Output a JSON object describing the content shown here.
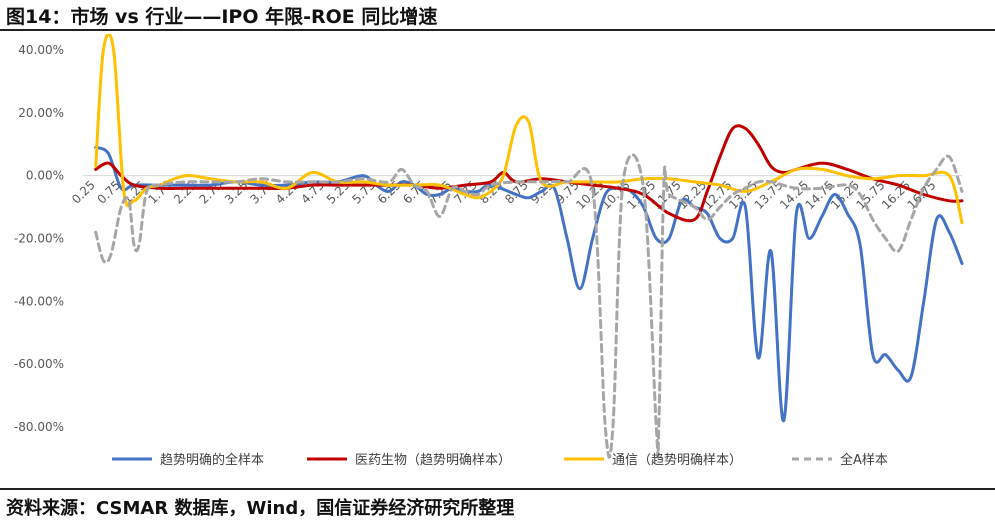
{
  "title": "图14：市场 vs 行业——IPO 年限-ROE 同比增速",
  "source": "资料来源：CSMAR 数据库，Wind，国信证券经济研究所整理",
  "chart_data": {
    "type": "line",
    "ylim": [
      -0.8,
      0.4
    ],
    "xlim": [
      0,
      17.25
    ],
    "yticks": [
      0.4,
      0.2,
      0.0,
      -0.2,
      -0.4,
      -0.6,
      -0.8
    ],
    "ytick_labels": [
      "40.00%",
      "20.00%",
      "0.00%",
      "-20.00%",
      "-40.00%",
      "-60.00%",
      "-80.00%"
    ],
    "xticks": [
      0.25,
      0.75,
      1.25,
      1.75,
      2.25,
      2.75,
      3.25,
      3.75,
      4.25,
      4.75,
      5.25,
      5.75,
      6.25,
      6.75,
      7.25,
      7.75,
      8.25,
      8.75,
      9.25,
      9.75,
      10.25,
      10.75,
      11.25,
      11.75,
      12.25,
      12.75,
      13.25,
      13.75,
      14.25,
      14.75,
      15.25,
      15.75,
      16.25,
      16.75
    ],
    "xtick_labels": [
      "0.25",
      "0.75",
      "1.25",
      "1.75",
      "2.25",
      "2.75",
      "3.25",
      "3.75",
      "4.25",
      "4.75",
      "5.25",
      "5.75",
      "6.25",
      "6.75",
      "7.25",
      "7.75",
      "8.25",
      "8.75",
      "9.25",
      "9.75",
      "10.25",
      "10.75",
      "11.25",
      "11.75",
      "12.25",
      "12.75",
      "13.25",
      "13.75",
      "14.25",
      "14.75",
      "15.25",
      "15.75",
      "16.25",
      "16.75"
    ],
    "grid": false,
    "legend_position": "bottom",
    "series": [
      {
        "name": "趋势明确的全样本",
        "color": "#4472C4",
        "dash": false,
        "points": [
          [
            0.25,
            0.09
          ],
          [
            0.5,
            0.07
          ],
          [
            0.75,
            -0.04
          ],
          [
            1.0,
            -0.03
          ],
          [
            1.5,
            -0.03
          ],
          [
            2.0,
            -0.03
          ],
          [
            2.5,
            -0.03
          ],
          [
            3.0,
            -0.02
          ],
          [
            3.5,
            -0.03
          ],
          [
            4.0,
            -0.03
          ],
          [
            4.5,
            -0.02
          ],
          [
            5.0,
            -0.02
          ],
          [
            5.5,
            0.0
          ],
          [
            5.75,
            -0.03
          ],
          [
            6.0,
            -0.05
          ],
          [
            6.25,
            -0.02
          ],
          [
            6.5,
            -0.03
          ],
          [
            6.75,
            -0.06
          ],
          [
            7.0,
            -0.06
          ],
          [
            7.25,
            -0.04
          ],
          [
            7.5,
            -0.05
          ],
          [
            7.75,
            -0.05
          ],
          [
            8.0,
            -0.03
          ],
          [
            8.5,
            -0.06
          ],
          [
            8.75,
            -0.07
          ],
          [
            9.0,
            -0.05
          ],
          [
            9.25,
            -0.04
          ],
          [
            9.5,
            -0.2
          ],
          [
            9.75,
            -0.36
          ],
          [
            10.0,
            -0.2
          ],
          [
            10.25,
            -0.06
          ],
          [
            10.5,
            -0.04
          ],
          [
            10.75,
            -0.05
          ],
          [
            11.0,
            -0.1
          ],
          [
            11.25,
            -0.2
          ],
          [
            11.5,
            -0.2
          ],
          [
            11.75,
            -0.08
          ],
          [
            12.0,
            -0.1
          ],
          [
            12.25,
            -0.12
          ],
          [
            12.5,
            -0.2
          ],
          [
            12.75,
            -0.2
          ],
          [
            13.0,
            -0.1
          ],
          [
            13.25,
            -0.58
          ],
          [
            13.5,
            -0.24
          ],
          [
            13.75,
            -0.78
          ],
          [
            14.0,
            -0.12
          ],
          [
            14.25,
            -0.2
          ],
          [
            14.5,
            -0.13
          ],
          [
            14.75,
            -0.06
          ],
          [
            15.0,
            -0.12
          ],
          [
            15.25,
            -0.22
          ],
          [
            15.5,
            -0.57
          ],
          [
            15.75,
            -0.57
          ],
          [
            16.0,
            -0.62
          ],
          [
            16.25,
            -0.64
          ],
          [
            16.5,
            -0.4
          ],
          [
            16.75,
            -0.14
          ],
          [
            17.0,
            -0.18
          ],
          [
            17.25,
            -0.28
          ]
        ]
      },
      {
        "name": "医药生物（趋势明确样本）",
        "color": "#C00000",
        "dash": false,
        "points": [
          [
            0.25,
            0.02
          ],
          [
            0.5,
            0.04
          ],
          [
            0.75,
            0.0
          ],
          [
            1.0,
            -0.03
          ],
          [
            1.5,
            -0.04
          ],
          [
            2.0,
            -0.04
          ],
          [
            2.5,
            -0.04
          ],
          [
            3.0,
            -0.04
          ],
          [
            3.5,
            -0.04
          ],
          [
            4.0,
            -0.04
          ],
          [
            4.5,
            -0.03
          ],
          [
            5.0,
            -0.03
          ],
          [
            5.5,
            -0.03
          ],
          [
            6.0,
            -0.03
          ],
          [
            6.5,
            -0.03
          ],
          [
            7.0,
            -0.04
          ],
          [
            7.5,
            -0.03
          ],
          [
            8.0,
            -0.02
          ],
          [
            8.25,
            0.01
          ],
          [
            8.5,
            -0.02
          ],
          [
            9.0,
            -0.01
          ],
          [
            9.5,
            -0.02
          ],
          [
            10.0,
            -0.03
          ],
          [
            10.5,
            -0.04
          ],
          [
            11.0,
            -0.06
          ],
          [
            11.5,
            -0.12
          ],
          [
            12.0,
            -0.14
          ],
          [
            12.25,
            -0.05
          ],
          [
            12.5,
            0.06
          ],
          [
            12.75,
            0.15
          ],
          [
            13.0,
            0.15
          ],
          [
            13.25,
            0.1
          ],
          [
            13.5,
            0.03
          ],
          [
            13.75,
            0.01
          ],
          [
            14.0,
            0.02
          ],
          [
            14.5,
            0.04
          ],
          [
            15.0,
            0.02
          ],
          [
            15.5,
            -0.01
          ],
          [
            16.0,
            -0.03
          ],
          [
            16.5,
            -0.06
          ],
          [
            17.0,
            -0.08
          ],
          [
            17.25,
            -0.08
          ]
        ]
      },
      {
        "name": "通信（趋势明确样本）",
        "color": "#FFC000",
        "dash": false,
        "points": [
          [
            0.25,
            0.03
          ],
          [
            0.4,
            0.4
          ],
          [
            0.6,
            0.4
          ],
          [
            0.8,
            -0.05
          ],
          [
            1.0,
            -0.08
          ],
          [
            1.25,
            -0.04
          ],
          [
            1.5,
            -0.03
          ],
          [
            2.0,
            0.0
          ],
          [
            2.5,
            -0.01
          ],
          [
            3.0,
            -0.02
          ],
          [
            3.5,
            -0.02
          ],
          [
            4.0,
            -0.04
          ],
          [
            4.5,
            0.01
          ],
          [
            5.0,
            -0.02
          ],
          [
            5.5,
            -0.02
          ],
          [
            6.0,
            -0.03
          ],
          [
            6.5,
            -0.03
          ],
          [
            7.0,
            -0.03
          ],
          [
            7.5,
            -0.06
          ],
          [
            7.75,
            -0.07
          ],
          [
            8.0,
            -0.05
          ],
          [
            8.25,
            0.0
          ],
          [
            8.5,
            0.16
          ],
          [
            8.75,
            0.17
          ],
          [
            9.0,
            -0.02
          ],
          [
            9.5,
            -0.02
          ],
          [
            10.0,
            -0.02
          ],
          [
            10.5,
            -0.02
          ],
          [
            11.0,
            -0.01
          ],
          [
            11.5,
            -0.01
          ],
          [
            12.0,
            -0.02
          ],
          [
            12.5,
            -0.03
          ],
          [
            13.0,
            -0.05
          ],
          [
            13.5,
            -0.02
          ],
          [
            14.0,
            0.02
          ],
          [
            14.5,
            0.02
          ],
          [
            15.0,
            0.0
          ],
          [
            15.5,
            -0.01
          ],
          [
            16.0,
            0.0
          ],
          [
            16.5,
            0.0
          ],
          [
            17.0,
            0.0
          ],
          [
            17.25,
            -0.15
          ]
        ]
      },
      {
        "name": "全A样本",
        "color": "#A6A6A6",
        "dash": true,
        "points": [
          [
            0.25,
            -0.18
          ],
          [
            0.4,
            -0.27
          ],
          [
            0.55,
            -0.25
          ],
          [
            0.75,
            -0.1
          ],
          [
            0.9,
            -0.08
          ],
          [
            1.0,
            -0.22
          ],
          [
            1.1,
            -0.22
          ],
          [
            1.25,
            -0.05
          ],
          [
            1.5,
            -0.03
          ],
          [
            2.0,
            -0.02
          ],
          [
            2.5,
            -0.02
          ],
          [
            3.0,
            -0.02
          ],
          [
            3.5,
            -0.01
          ],
          [
            4.0,
            -0.02
          ],
          [
            4.5,
            -0.02
          ],
          [
            5.0,
            -0.02
          ],
          [
            5.5,
            -0.01
          ],
          [
            6.0,
            -0.02
          ],
          [
            6.25,
            0.02
          ],
          [
            6.5,
            -0.03
          ],
          [
            6.75,
            -0.05
          ],
          [
            7.0,
            -0.13
          ],
          [
            7.25,
            -0.04
          ],
          [
            7.5,
            -0.05
          ],
          [
            7.75,
            -0.06
          ],
          [
            8.0,
            -0.03
          ],
          [
            8.5,
            -0.02
          ],
          [
            9.0,
            -0.02
          ],
          [
            9.5,
            -0.02
          ],
          [
            10.0,
            -0.04
          ],
          [
            10.25,
            -0.8
          ],
          [
            10.4,
            -0.8
          ],
          [
            10.6,
            -0.02
          ],
          [
            11.0,
            -0.04
          ],
          [
            11.25,
            -0.8
          ],
          [
            11.3,
            -0.8
          ],
          [
            11.4,
            -0.02
          ],
          [
            11.5,
            -0.06
          ],
          [
            12.0,
            -0.1
          ],
          [
            12.25,
            -0.14
          ],
          [
            12.5,
            -0.1
          ],
          [
            12.75,
            -0.06
          ],
          [
            13.0,
            -0.04
          ],
          [
            13.25,
            -0.02
          ],
          [
            13.5,
            -0.02
          ],
          [
            14.0,
            -0.04
          ],
          [
            14.5,
            -0.04
          ],
          [
            15.0,
            -0.03
          ],
          [
            15.25,
            -0.06
          ],
          [
            15.5,
            -0.14
          ],
          [
            15.75,
            -0.2
          ],
          [
            16.0,
            -0.24
          ],
          [
            16.25,
            -0.14
          ],
          [
            16.5,
            -0.04
          ],
          [
            16.75,
            0.02
          ],
          [
            17.0,
            0.06
          ],
          [
            17.25,
            -0.05
          ]
        ]
      }
    ]
  }
}
